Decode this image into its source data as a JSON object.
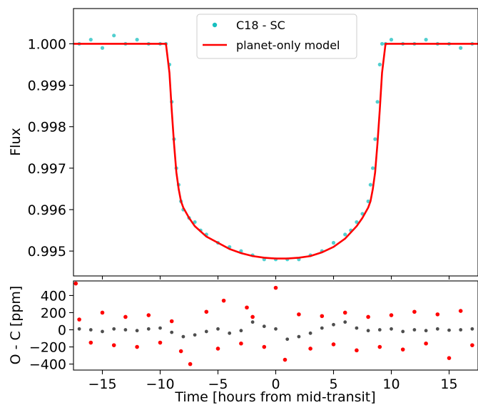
{
  "chart_data": [
    {
      "type": "scatter",
      "panel": "top",
      "ylabel": "Flux",
      "xlabel": "",
      "xlim": [
        -17.5,
        17.5
      ],
      "ylim": [
        0.9944,
        1.00085
      ],
      "yticks": [
        1.0,
        0.999,
        0.998,
        0.997,
        0.996,
        0.995
      ],
      "ytick_labels": [
        "1.000",
        "0.999",
        "0.998",
        "0.997",
        "0.996",
        "0.995"
      ],
      "grid": false,
      "legend": {
        "placement": "top-center",
        "entries": [
          {
            "label": "C18 - SC",
            "marker": "dot",
            "color": "#17bfbf"
          },
          {
            "label": "planet-only model",
            "marker": "line",
            "color": "#ff0000"
          }
        ]
      },
      "series": [
        {
          "name": "C18 - SC",
          "kind": "points",
          "color": "#17bfbf",
          "x": [
            -17,
            -16,
            -15,
            -14,
            -13,
            -12,
            -11,
            -10,
            -9.5,
            -9.2,
            -9.0,
            -8.8,
            -8.6,
            -8.4,
            -8.2,
            -8.0,
            -7.5,
            -7,
            -6.5,
            -6,
            -5,
            -4,
            -3,
            -2,
            -1,
            0,
            1,
            2,
            3,
            4,
            5,
            6,
            6.5,
            7,
            7.5,
            8,
            8.2,
            8.4,
            8.6,
            8.8,
            9.0,
            9.2,
            9.5,
            10,
            11,
            12,
            13,
            14,
            15,
            16,
            17
          ],
          "y": [
            1.0,
            1.0001,
            0.9999,
            1.0002,
            1.0,
            1.0001,
            1.0,
            1.0,
            1.0,
            0.9995,
            0.9986,
            0.9977,
            0.997,
            0.9966,
            0.9962,
            0.996,
            0.9958,
            0.9957,
            0.9955,
            0.9954,
            0.9952,
            0.9951,
            0.995,
            0.9949,
            0.9948,
            0.9948,
            0.9948,
            0.9948,
            0.9949,
            0.995,
            0.9952,
            0.9954,
            0.9955,
            0.9957,
            0.9959,
            0.9962,
            0.9966,
            0.997,
            0.9977,
            0.9986,
            0.9995,
            1.0,
            1.0,
            1.0001,
            1.0,
            1.0,
            1.0001,
            1.0,
            1.0,
            0.9999,
            1.0
          ]
        },
        {
          "name": "planet-only model",
          "kind": "line",
          "color": "#ff0000",
          "x": [
            -17.5,
            -9.5,
            -9.2,
            -9.0,
            -8.8,
            -8.6,
            -8.4,
            -8.2,
            -8.0,
            -7.5,
            -7,
            -6,
            -5,
            -4,
            -3,
            -2,
            -1,
            0,
            1,
            2,
            3,
            4,
            5,
            6,
            7,
            7.5,
            8,
            8.2,
            8.4,
            8.6,
            8.8,
            9.0,
            9.2,
            9.5,
            17.5
          ],
          "y": [
            1.0,
            1.0,
            0.9993,
            0.9984,
            0.9976,
            0.9969,
            0.9965,
            0.9962,
            0.99605,
            0.9958,
            0.9956,
            0.99535,
            0.9952,
            0.99505,
            0.99495,
            0.99488,
            0.99484,
            0.99482,
            0.99482,
            0.99484,
            0.99488,
            0.99497,
            0.9951,
            0.9953,
            0.9956,
            0.9958,
            0.99605,
            0.9962,
            0.9965,
            0.9969,
            0.9976,
            0.9984,
            0.9993,
            1.0,
            1.0
          ]
        }
      ]
    },
    {
      "type": "scatter",
      "panel": "bottom",
      "xlabel": "Time [hours from mid-transit]",
      "ylabel": "O - C [ppm]",
      "xlim": [
        -17.5,
        17.5
      ],
      "ylim": [
        -470,
        570
      ],
      "xticks": [
        -15,
        -10,
        -5,
        0,
        5,
        10,
        15
      ],
      "xtick_labels": [
        "−15",
        "−10",
        "−5",
        "0",
        "5",
        "10",
        "15"
      ],
      "yticks": [
        400,
        200,
        0,
        -200,
        -400
      ],
      "ytick_labels": [
        "400",
        "200",
        "0",
        "−200",
        "−400"
      ],
      "grid": false,
      "series": [
        {
          "name": "residuals",
          "kind": "points",
          "color": "#ff0000",
          "x": [
            -17.3,
            -17,
            -16,
            -15,
            -14,
            -13,
            -12,
            -11,
            -10,
            -9,
            -8.2,
            -7.4,
            -6,
            -5,
            -4.5,
            -3,
            -2.5,
            -2,
            -1,
            0,
            0.8,
            2,
            3,
            4,
            5,
            6,
            7,
            8,
            9,
            10,
            11,
            12,
            13,
            14,
            15,
            16,
            17
          ],
          "y": [
            540,
            120,
            -150,
            200,
            -180,
            150,
            -200,
            170,
            -150,
            100,
            -250,
            -400,
            210,
            -220,
            340,
            -160,
            260,
            150,
            -200,
            490,
            -350,
            180,
            -220,
            160,
            -170,
            200,
            -240,
            150,
            -200,
            170,
            -230,
            210,
            -160,
            180,
            -330,
            220,
            -180
          ]
        },
        {
          "name": "binned",
          "kind": "points",
          "color": "#222222",
          "x": [
            -17,
            -16,
            -15,
            -14,
            -13,
            -12,
            -11,
            -10,
            -9,
            -8,
            -7,
            -6,
            -5,
            -4,
            -3,
            -2,
            -1,
            0,
            1,
            2,
            3,
            4,
            5,
            6,
            7,
            8,
            9,
            10,
            11,
            12,
            13,
            14,
            15,
            16,
            17
          ],
          "y": [
            10,
            0,
            -20,
            10,
            0,
            -10,
            10,
            20,
            -30,
            -80,
            -60,
            -20,
            10,
            -40,
            -10,
            90,
            40,
            10,
            -110,
            -80,
            -40,
            20,
            60,
            90,
            20,
            -10,
            0,
            10,
            -20,
            0,
            -10,
            10,
            -5,
            0,
            10
          ]
        }
      ]
    }
  ]
}
